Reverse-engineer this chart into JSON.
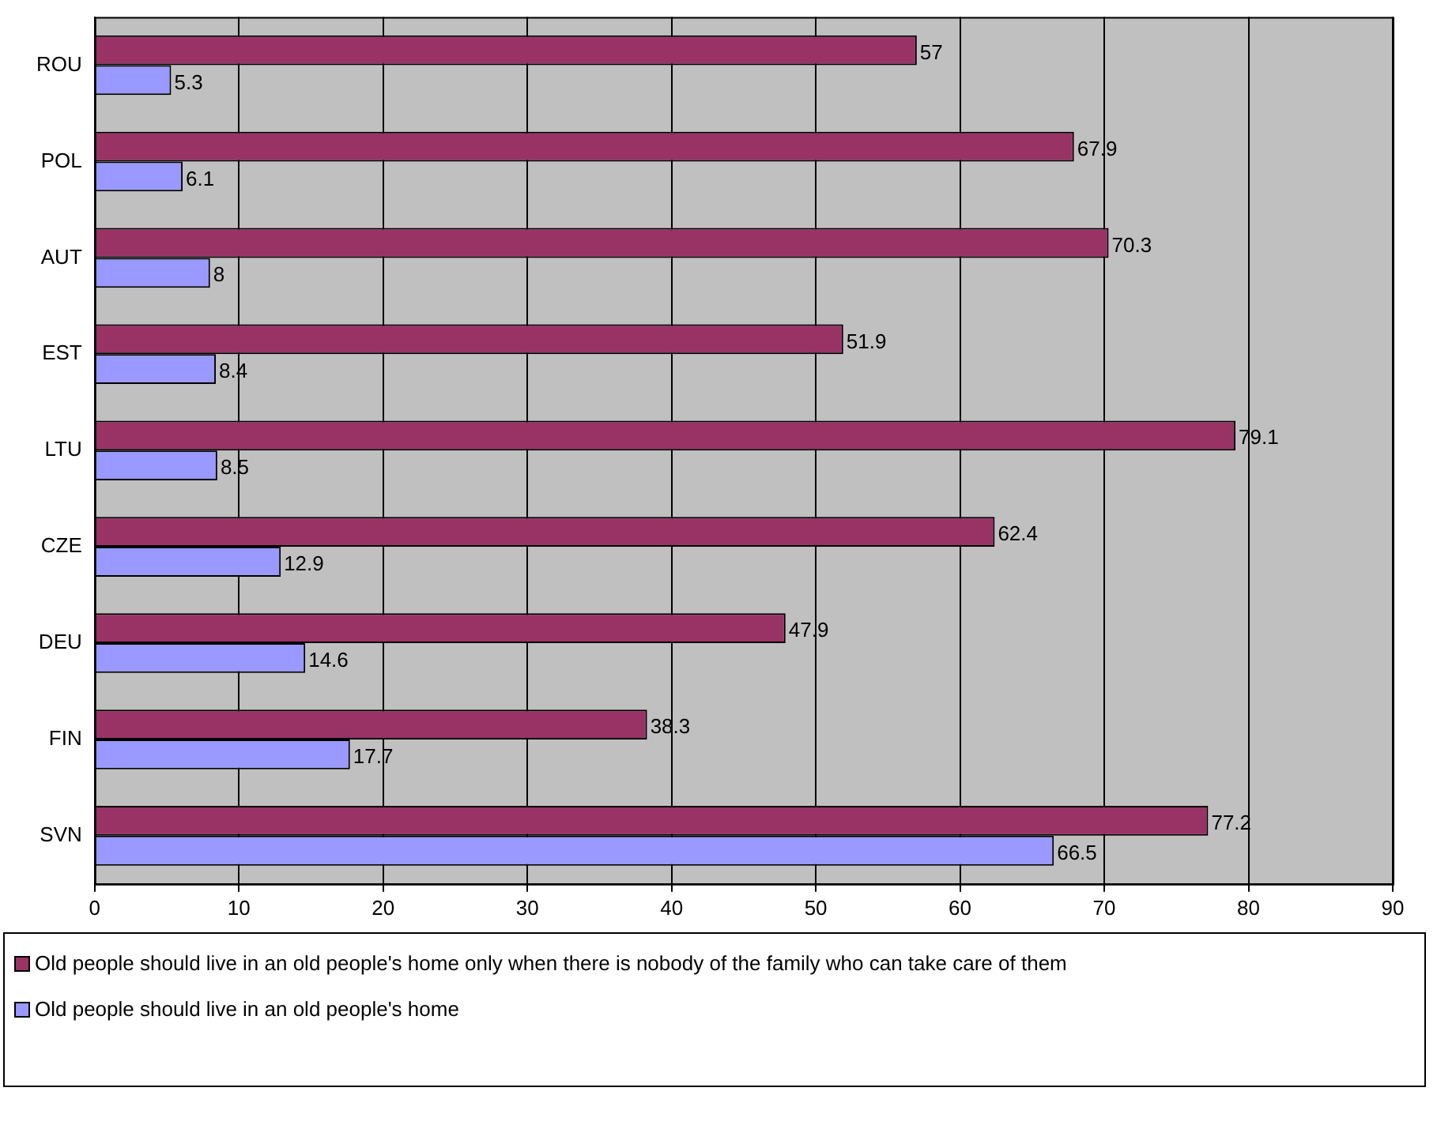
{
  "chart_data": {
    "type": "bar",
    "orientation": "horizontal",
    "categories": [
      "ROU",
      "POL",
      "AUT",
      "EST",
      "LTU",
      "CZE",
      "DEU",
      "FIN",
      "SVN"
    ],
    "series": [
      {
        "name": "Old people should live in an old people's home only when there is nobody of the family who can take care of them",
        "color": "#993366",
        "values": [
          57,
          67.9,
          70.3,
          51.9,
          79.1,
          62.4,
          47.9,
          38.3,
          77.2
        ]
      },
      {
        "name": "Old people should live in an old people's home",
        "color": "#9999ff",
        "values": [
          5.3,
          6.1,
          8,
          8.4,
          8.5,
          12.9,
          14.6,
          17.7,
          66.5
        ]
      }
    ],
    "xlim": [
      0,
      90
    ],
    "xticks": [
      0,
      10,
      20,
      30,
      40,
      50,
      60,
      70,
      80,
      90
    ],
    "grid": "x",
    "legend": "bottom",
    "data_labels": true
  }
}
